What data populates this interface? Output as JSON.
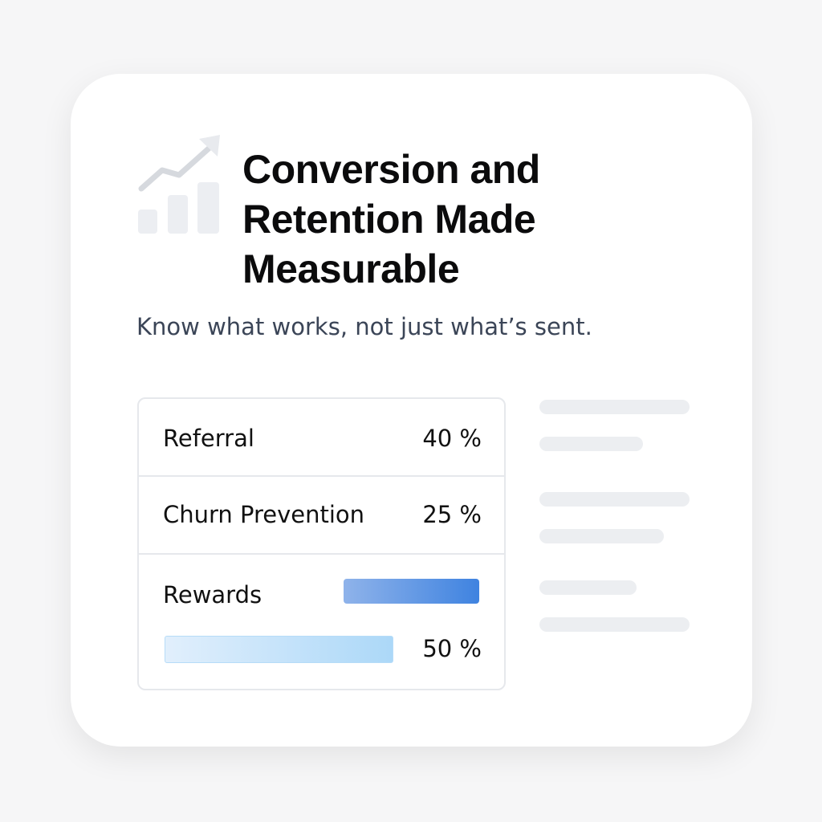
{
  "title": "Conversion and Retention Made Measurable",
  "subtitle": "Know what works, not just what’s sent.",
  "icon": "trending-chart-icon",
  "rows": [
    {
      "label": "Referral",
      "value": "40 %"
    },
    {
      "label": "Churn Prevention",
      "value": "25 %"
    },
    {
      "label": "Rewards",
      "value": "50 %",
      "progress": 0.5
    }
  ],
  "colors": {
    "accent": "#3f83e0",
    "light_bar": "#acd8f8",
    "skeleton": "#eceef1"
  }
}
